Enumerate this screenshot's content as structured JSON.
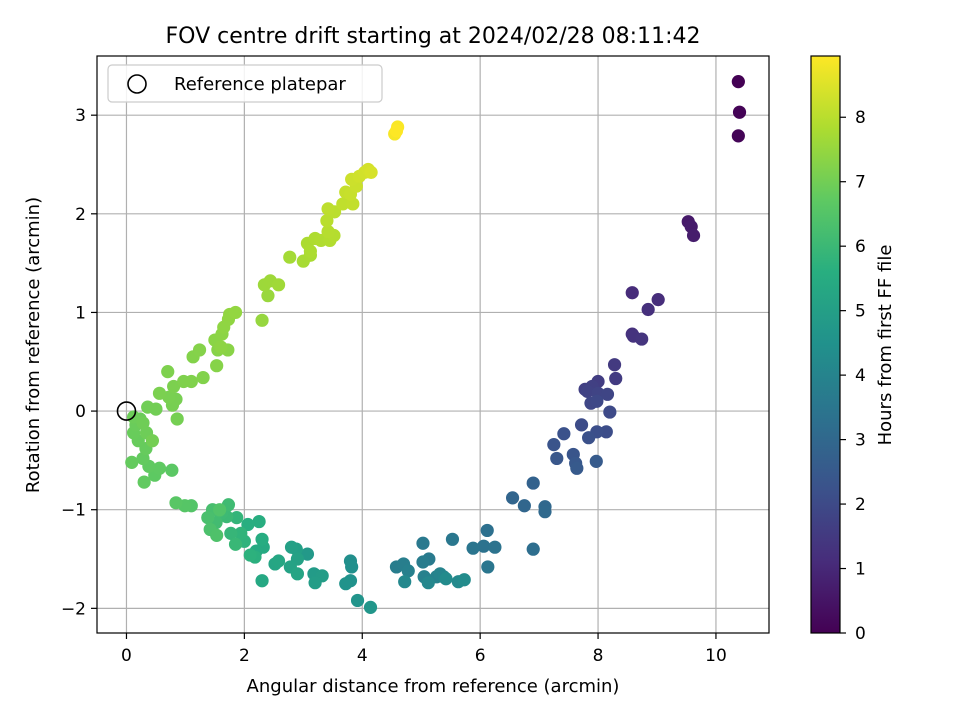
{
  "chart_data": {
    "type": "scatter",
    "title": "FOV centre drift starting at 2024/02/28 08:11:42",
    "xlabel": "Angular distance from reference (arcmin)",
    "ylabel": "Rotation from reference (arcmin)",
    "xlim": [
      -0.5,
      10.9
    ],
    "ylim": [
      -2.25,
      3.6
    ],
    "xticks": [
      0,
      2,
      4,
      6,
      8,
      10
    ],
    "yticks": [
      -2,
      -1,
      0,
      1,
      2,
      3
    ],
    "grid": true,
    "legend": {
      "placement": "top-left",
      "entries": [
        {
          "label": "Reference platepar",
          "marker": "hollow-circle"
        }
      ]
    },
    "reference_point": {
      "x": 0,
      "y": 0
    },
    "colorbar": {
      "label": "Hours from first FF file",
      "colormap": "viridis",
      "range": [
        0,
        8.95
      ],
      "ticks": [
        0,
        1,
        2,
        3,
        4,
        5,
        6,
        7,
        8
      ]
    },
    "series": [
      {
        "points": [
          [
            10.38,
            3.34,
            0.0
          ],
          [
            10.4,
            3.03,
            0.05
          ],
          [
            10.38,
            2.79,
            0.1
          ],
          [
            9.53,
            1.92,
            0.6
          ],
          [
            9.58,
            1.87,
            0.65
          ],
          [
            9.62,
            1.78,
            0.7
          ],
          [
            8.58,
            1.2,
            1.1
          ],
          [
            9.02,
            1.13,
            1.15
          ],
          [
            8.85,
            1.03,
            1.2
          ],
          [
            8.58,
            0.78,
            1.25
          ],
          [
            8.6,
            0.76,
            1.3
          ],
          [
            8.74,
            0.73,
            1.35
          ],
          [
            8.28,
            0.47,
            1.5
          ],
          [
            8.3,
            0.33,
            1.55
          ],
          [
            8.0,
            0.3,
            1.6
          ],
          [
            7.78,
            0.22,
            1.65
          ],
          [
            7.9,
            0.25,
            1.7
          ],
          [
            7.82,
            0.2,
            1.75
          ],
          [
            8.0,
            0.18,
            1.8
          ],
          [
            8.16,
            0.17,
            1.85
          ],
          [
            7.88,
            0.08,
            1.9
          ],
          [
            7.98,
            0.1,
            1.95
          ],
          [
            8.2,
            -0.01,
            2.0
          ],
          [
            7.72,
            -0.14,
            2.05
          ],
          [
            8.14,
            -0.21,
            2.1
          ],
          [
            7.98,
            -0.21,
            2.15
          ],
          [
            7.84,
            -0.27,
            2.2
          ],
          [
            7.42,
            -0.23,
            2.25
          ],
          [
            7.25,
            -0.34,
            2.3
          ],
          [
            7.58,
            -0.44,
            2.35
          ],
          [
            7.3,
            -0.48,
            2.4
          ],
          [
            7.62,
            -0.53,
            2.45
          ],
          [
            7.64,
            -0.58,
            2.5
          ],
          [
            7.97,
            -0.51,
            2.55
          ],
          [
            6.9,
            -0.73,
            2.8
          ],
          [
            6.55,
            -0.88,
            2.9
          ],
          [
            6.75,
            -0.96,
            2.95
          ],
          [
            7.1,
            -0.97,
            3.0
          ],
          [
            7.1,
            -1.02,
            3.05
          ],
          [
            6.9,
            -1.4,
            3.2
          ],
          [
            6.12,
            -1.21,
            3.3
          ],
          [
            6.06,
            -1.37,
            3.35
          ],
          [
            6.25,
            -1.38,
            3.4
          ],
          [
            5.88,
            -1.39,
            3.45
          ],
          [
            6.13,
            -1.58,
            3.5
          ],
          [
            5.53,
            -1.3,
            3.55
          ],
          [
            5.03,
            -1.34,
            3.6
          ],
          [
            5.13,
            -1.5,
            3.65
          ],
          [
            5.03,
            -1.53,
            3.7
          ],
          [
            4.58,
            -1.58,
            3.75
          ],
          [
            4.7,
            -1.55,
            3.8
          ],
          [
            4.78,
            -1.62,
            3.85
          ],
          [
            5.05,
            -1.68,
            3.9
          ],
          [
            5.26,
            -1.68,
            3.95
          ],
          [
            5.32,
            -1.65,
            4.0
          ],
          [
            5.38,
            -1.68,
            4.05
          ],
          [
            5.12,
            -1.74,
            4.1
          ],
          [
            4.72,
            -1.73,
            4.15
          ],
          [
            5.63,
            -1.73,
            4.2
          ],
          [
            5.42,
            -1.7,
            4.25
          ],
          [
            5.73,
            -1.71,
            4.3
          ],
          [
            3.8,
            -1.52,
            4.4
          ],
          [
            3.82,
            -1.58,
            4.45
          ],
          [
            3.8,
            -1.72,
            4.5
          ],
          [
            3.72,
            -1.75,
            4.55
          ],
          [
            3.92,
            -1.92,
            4.6
          ],
          [
            4.14,
            -1.99,
            4.65
          ],
          [
            3.07,
            -1.45,
            4.8
          ],
          [
            3.18,
            -1.65,
            4.85
          ],
          [
            3.32,
            -1.67,
            4.9
          ],
          [
            3.2,
            -1.74,
            4.95
          ],
          [
            2.88,
            -1.4,
            5.0
          ],
          [
            2.8,
            -1.38,
            5.05
          ],
          [
            2.9,
            -1.5,
            5.1
          ],
          [
            2.78,
            -1.58,
            5.15
          ],
          [
            2.9,
            -1.65,
            5.2
          ],
          [
            2.52,
            -1.55,
            5.25
          ],
          [
            2.58,
            -1.52,
            5.3
          ],
          [
            2.3,
            -1.72,
            5.35
          ],
          [
            2.32,
            -1.38,
            5.4
          ],
          [
            2.2,
            -1.42,
            5.45
          ],
          [
            2.3,
            -1.3,
            5.5
          ],
          [
            2.25,
            -1.12,
            5.55
          ],
          [
            2.06,
            -1.15,
            5.6
          ],
          [
            2.18,
            -1.48,
            5.65
          ],
          [
            2.1,
            -1.46,
            5.7
          ],
          [
            2.0,
            -1.32,
            5.75
          ],
          [
            1.94,
            -1.24,
            5.8
          ],
          [
            1.87,
            -1.08,
            5.85
          ],
          [
            1.77,
            -1.24,
            5.9
          ],
          [
            1.85,
            -1.35,
            5.95
          ],
          [
            1.7,
            -1.07,
            6.0
          ],
          [
            1.62,
            -1.03,
            6.05
          ],
          [
            1.73,
            -0.95,
            6.1
          ],
          [
            1.52,
            -1.13,
            6.15
          ],
          [
            1.57,
            -1.01,
            6.2
          ],
          [
            1.46,
            -1.0,
            6.25
          ],
          [
            1.38,
            -1.08,
            6.3
          ],
          [
            1.42,
            -1.2,
            6.35
          ],
          [
            1.53,
            -1.26,
            6.4
          ],
          [
            1.58,
            -1.0,
            6.45
          ],
          [
            1.1,
            -0.96,
            6.5
          ],
          [
            0.99,
            -0.96,
            6.55
          ],
          [
            0.84,
            -0.93,
            6.6
          ],
          [
            0.77,
            -0.6,
            6.65
          ],
          [
            0.48,
            -0.65,
            6.7
          ],
          [
            0.56,
            -0.58,
            6.72
          ],
          [
            0.38,
            -0.56,
            6.74
          ],
          [
            0.3,
            -0.72,
            6.76
          ],
          [
            0.28,
            -0.48,
            6.78
          ],
          [
            0.09,
            -0.52,
            6.8
          ],
          [
            0.33,
            -0.38,
            6.82
          ],
          [
            0.2,
            -0.3,
            6.84
          ],
          [
            0.12,
            -0.22,
            6.86
          ],
          [
            0.16,
            -0.14,
            6.88
          ],
          [
            0.23,
            -0.08,
            6.9
          ],
          [
            0.12,
            -0.06,
            6.92
          ],
          [
            0.34,
            -0.22,
            6.94
          ],
          [
            0.28,
            -0.12,
            6.96
          ],
          [
            0.36,
            0.04,
            6.98
          ],
          [
            0.5,
            0.02,
            7.0
          ],
          [
            0.44,
            -0.3,
            7.02
          ],
          [
            0.86,
            -0.08,
            7.04
          ],
          [
            0.78,
            0.06,
            7.06
          ],
          [
            0.84,
            0.12,
            7.08
          ],
          [
            0.72,
            0.14,
            7.1
          ],
          [
            0.56,
            0.18,
            7.12
          ],
          [
            0.8,
            0.25,
            7.14
          ],
          [
            0.7,
            0.4,
            7.16
          ],
          [
            0.97,
            0.3,
            7.18
          ],
          [
            1.1,
            0.3,
            7.2
          ],
          [
            1.3,
            0.34,
            7.22
          ],
          [
            1.13,
            0.55,
            7.24
          ],
          [
            1.24,
            0.62,
            7.26
          ],
          [
            1.53,
            0.46,
            7.28
          ],
          [
            1.55,
            0.62,
            7.3
          ],
          [
            1.72,
            0.62,
            7.32
          ],
          [
            1.5,
            0.72,
            7.34
          ],
          [
            1.62,
            0.78,
            7.36
          ],
          [
            1.6,
            0.65,
            7.38
          ],
          [
            1.65,
            0.85,
            7.4
          ],
          [
            1.73,
            0.93,
            7.42
          ],
          [
            1.75,
            0.98,
            7.44
          ],
          [
            1.85,
            1.0,
            7.46
          ],
          [
            2.3,
            0.92,
            7.5
          ],
          [
            2.4,
            1.17,
            7.55
          ],
          [
            2.34,
            1.28,
            7.6
          ],
          [
            2.44,
            1.32,
            7.62
          ],
          [
            2.58,
            1.28,
            7.65
          ],
          [
            2.77,
            1.56,
            7.7
          ],
          [
            3.0,
            1.52,
            7.75
          ],
          [
            3.12,
            1.58,
            7.78
          ],
          [
            3.07,
            1.7,
            7.8
          ],
          [
            3.12,
            1.62,
            7.82
          ],
          [
            3.2,
            1.75,
            7.85
          ],
          [
            3.3,
            1.73,
            7.88
          ],
          [
            3.45,
            1.73,
            7.9
          ],
          [
            3.52,
            1.78,
            7.93
          ],
          [
            3.42,
            1.82,
            7.96
          ],
          [
            3.4,
            1.93,
            8.0
          ],
          [
            3.53,
            2.02,
            8.03
          ],
          [
            3.42,
            2.05,
            8.06
          ],
          [
            3.67,
            2.1,
            8.1
          ],
          [
            3.84,
            2.1,
            8.13
          ],
          [
            3.72,
            2.22,
            8.16
          ],
          [
            3.8,
            2.2,
            8.2
          ],
          [
            3.9,
            2.28,
            8.23
          ],
          [
            3.82,
            2.35,
            8.26
          ],
          [
            3.95,
            2.38,
            8.3
          ],
          [
            4.04,
            2.42,
            8.33
          ],
          [
            4.1,
            2.45,
            8.36
          ],
          [
            4.15,
            2.42,
            8.4
          ],
          [
            4.55,
            2.81,
            8.85
          ],
          [
            4.6,
            2.88,
            8.9
          ],
          [
            4.58,
            2.84,
            8.95
          ]
        ]
      }
    ]
  }
}
